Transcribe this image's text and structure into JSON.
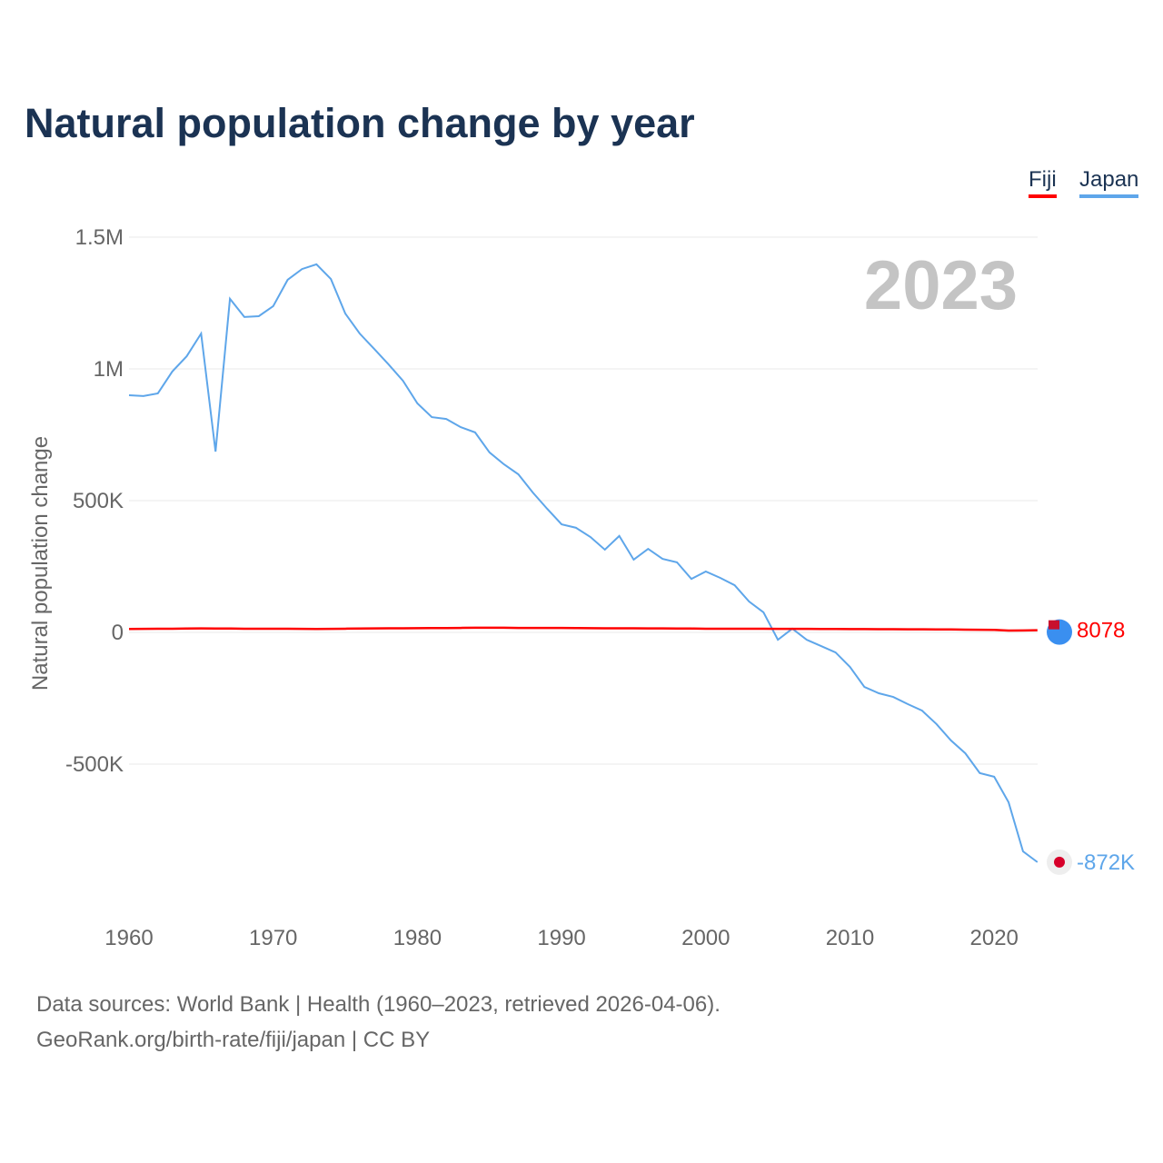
{
  "chart_data": {
    "type": "line",
    "title": "Natural population change by year",
    "xlabel": "",
    "ylabel": "Natural population change",
    "xlim": [
      1960,
      2023
    ],
    "ylim": [
      -1000000,
      1500000
    ],
    "x_ticks": [
      1960,
      1970,
      1980,
      1990,
      2000,
      2010,
      2020
    ],
    "y_ticks": [
      {
        "v": 1500000,
        "label": "1.5M"
      },
      {
        "v": 1000000,
        "label": "1M"
      },
      {
        "v": 500000,
        "label": "500K"
      },
      {
        "v": 0,
        "label": "0"
      },
      {
        "v": -500000,
        "label": "-500K"
      }
    ],
    "grid": true,
    "legend_position": "top-right",
    "year_watermark": "2023",
    "x": [
      1960,
      1961,
      1962,
      1963,
      1964,
      1965,
      1966,
      1967,
      1968,
      1969,
      1970,
      1971,
      1972,
      1973,
      1974,
      1975,
      1976,
      1977,
      1978,
      1979,
      1980,
      1981,
      1982,
      1983,
      1984,
      1985,
      1986,
      1987,
      1988,
      1989,
      1990,
      1991,
      1992,
      1993,
      1994,
      1995,
      1996,
      1997,
      1998,
      1999,
      2000,
      2001,
      2002,
      2003,
      2004,
      2005,
      2006,
      2007,
      2008,
      2009,
      2010,
      2011,
      2012,
      2013,
      2014,
      2015,
      2016,
      2017,
      2018,
      2019,
      2020,
      2021,
      2022,
      2023
    ],
    "series": [
      {
        "name": "Fiji",
        "color": "#ff0000",
        "end_label": "8078",
        "values": [
          13000,
          13500,
          14000,
          14000,
          14500,
          15000,
          14500,
          14500,
          14000,
          14000,
          14000,
          14000,
          13500,
          13000,
          13500,
          14000,
          14500,
          15000,
          15500,
          15500,
          16000,
          16500,
          16500,
          17000,
          17500,
          17500,
          17500,
          17000,
          17000,
          17000,
          17000,
          16500,
          16000,
          15500,
          15500,
          15500,
          15000,
          15000,
          14500,
          14500,
          14000,
          14000,
          14000,
          14000,
          14000,
          13500,
          13500,
          13500,
          13000,
          13000,
          12500,
          12500,
          12000,
          12000,
          11500,
          11500,
          11000,
          11000,
          10500,
          10000,
          9500,
          7000,
          7500,
          8078
        ]
      },
      {
        "name": "Japan",
        "color": "#5ea6ea",
        "end_label": "-872K",
        "values": [
          900000,
          897000,
          907000,
          990000,
          1048000,
          1134000,
          686000,
          1266000,
          1197000,
          1200000,
          1238000,
          1338000,
          1379000,
          1397000,
          1341000,
          1210000,
          1134000,
          1076000,
          1017000,
          955000,
          869000,
          817000,
          810000,
          779000,
          759000,
          683000,
          638000,
          600000,
          531000,
          469000,
          410000,
          397000,
          362000,
          314000,
          366000,
          276000,
          317000,
          279000,
          266000,
          203000,
          231000,
          207000,
          179000,
          117000,
          76000,
          -28000,
          14000,
          -28000,
          -52000,
          -76000,
          -131000,
          -207000,
          -231000,
          -245000,
          -272000,
          -297000,
          -348000,
          -410000,
          -459000,
          -534000,
          -548000,
          -645000,
          -831000,
          -872000
        ]
      }
    ]
  },
  "footer": {
    "line1": "Data sources: World Bank | Health (1960–2023, retrieved 2026-04-06).",
    "line2": "GeoRank.org/birth-rate/fiji/japan | CC BY"
  }
}
